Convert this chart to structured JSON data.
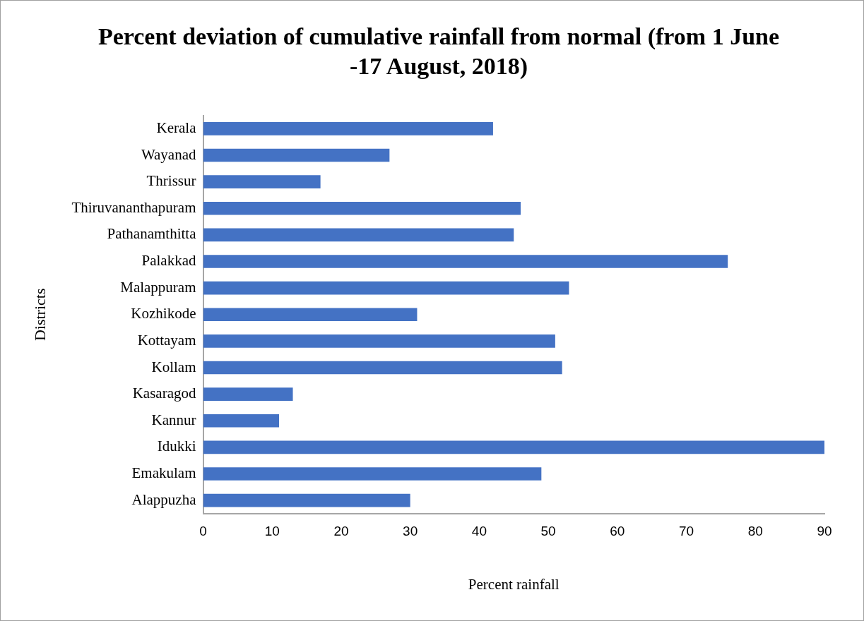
{
  "chart_data": {
    "type": "bar",
    "orientation": "horizontal",
    "title": "Percent deviation of cumulative rainfall from normal (from 1 June -17 August, 2018)",
    "xlabel": "Percent rainfall",
    "ylabel": "Districts",
    "categories": [
      "Kerala",
      "Wayanad",
      "Thrissur",
      "Thiruvananthapuram",
      "Pathanamthitta",
      "Palakkad",
      "Malappuram",
      "Kozhikode",
      "Kottayam",
      "Kollam",
      "Kasaragod",
      "Kannur",
      "Idukki",
      "Emakulam",
      "Alappuzha"
    ],
    "values": [
      42,
      27,
      17,
      46,
      45,
      76,
      53,
      31,
      51,
      52,
      13,
      11,
      90,
      49,
      30
    ],
    "color": "#4472c4",
    "xlim": [
      0,
      90
    ],
    "xticks": [
      0,
      10,
      20,
      30,
      40,
      50,
      60,
      70,
      80,
      90
    ],
    "grid": false,
    "legend": false
  }
}
